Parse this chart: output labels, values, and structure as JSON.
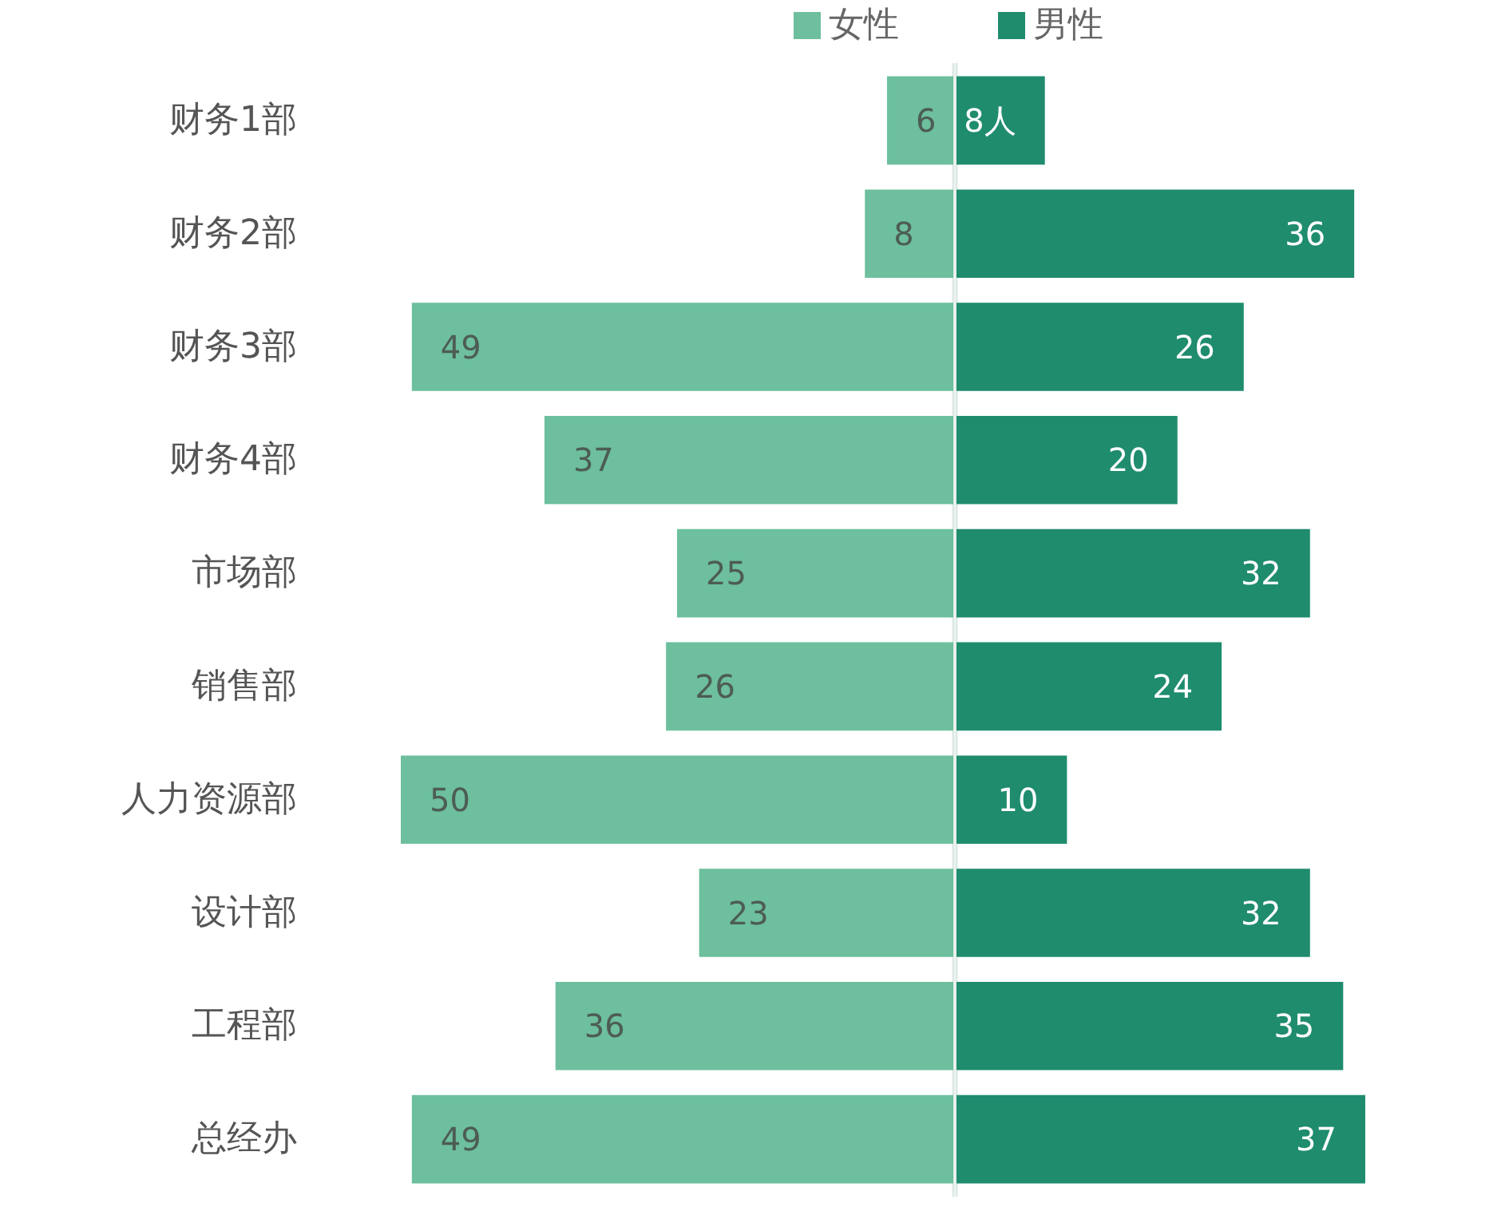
{
  "chart_data": [
    {
      "type": "bar",
      "orientation": "horizontal",
      "tick_labels": "y",
      "legend": "top right",
      "xlim": [
        50,
        0
      ],
      "data_labels": true,
      "categories": [
        "财务1部",
        "财务2部",
        "财务3部",
        "财务4部",
        "市场部",
        "销售部",
        "人力资源部",
        "设计部",
        "工程部",
        "总经办"
      ],
      "series": [
        {
          "name": "女性",
          "color": "#6dbf9d",
          "values": [
            6,
            8,
            49,
            37,
            25,
            26,
            50,
            23,
            36,
            49
          ]
        }
      ]
    },
    {
      "type": "bar",
      "orientation": "horizontal",
      "tick_labels": false,
      "legend": "top left",
      "xlim": [
        0,
        37
      ],
      "categories": [
        null,
        null,
        null,
        null,
        null,
        null,
        null,
        null,
        null,
        null
      ],
      "series": [
        {
          "name": "男性",
          "color": "#1f8c6e",
          "values": [
            8,
            36,
            26,
            20,
            32,
            24,
            10,
            32,
            35,
            37
          ],
          "value_labels": [
            "8人",
            "36",
            "26",
            "20",
            "32",
            "24",
            "10",
            "32",
            "35",
            "37"
          ]
        }
      ]
    }
  ]
}
